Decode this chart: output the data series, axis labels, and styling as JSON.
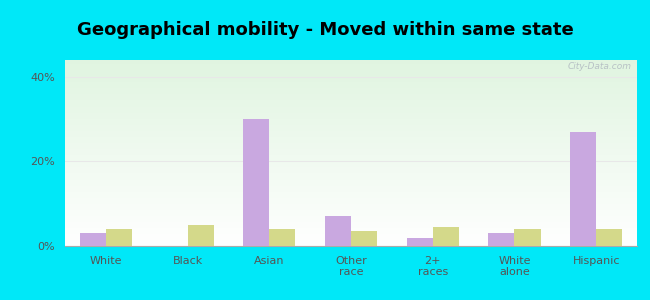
{
  "title": "Geographical mobility - Moved within same state",
  "categories": [
    "White",
    "Black",
    "Asian",
    "Other\nrace",
    "2+\nraces",
    "White\nalone",
    "Hispanic"
  ],
  "hull_values": [
    3.0,
    0.0,
    30.0,
    7.0,
    2.0,
    3.0,
    27.0
  ],
  "ma_values": [
    4.0,
    5.0,
    4.0,
    3.5,
    4.5,
    4.0,
    4.0
  ],
  "hull_color": "#c9a8e0",
  "ma_color": "#d4d98a",
  "bg_outer": "#00e8f8",
  "ylabel_ticks": [
    "0%",
    "20%",
    "40%"
  ],
  "yticks": [
    0,
    20,
    40
  ],
  "ylim": [
    0,
    44
  ],
  "bar_width": 0.32,
  "title_fontsize": 13,
  "tick_fontsize": 8,
  "legend_fontsize": 9,
  "watermark": "City-Data.com",
  "grid_color": "#e8e8e8",
  "chart_bg_top": "#e8f5d8",
  "chart_bg_bottom": "#f0faf4"
}
